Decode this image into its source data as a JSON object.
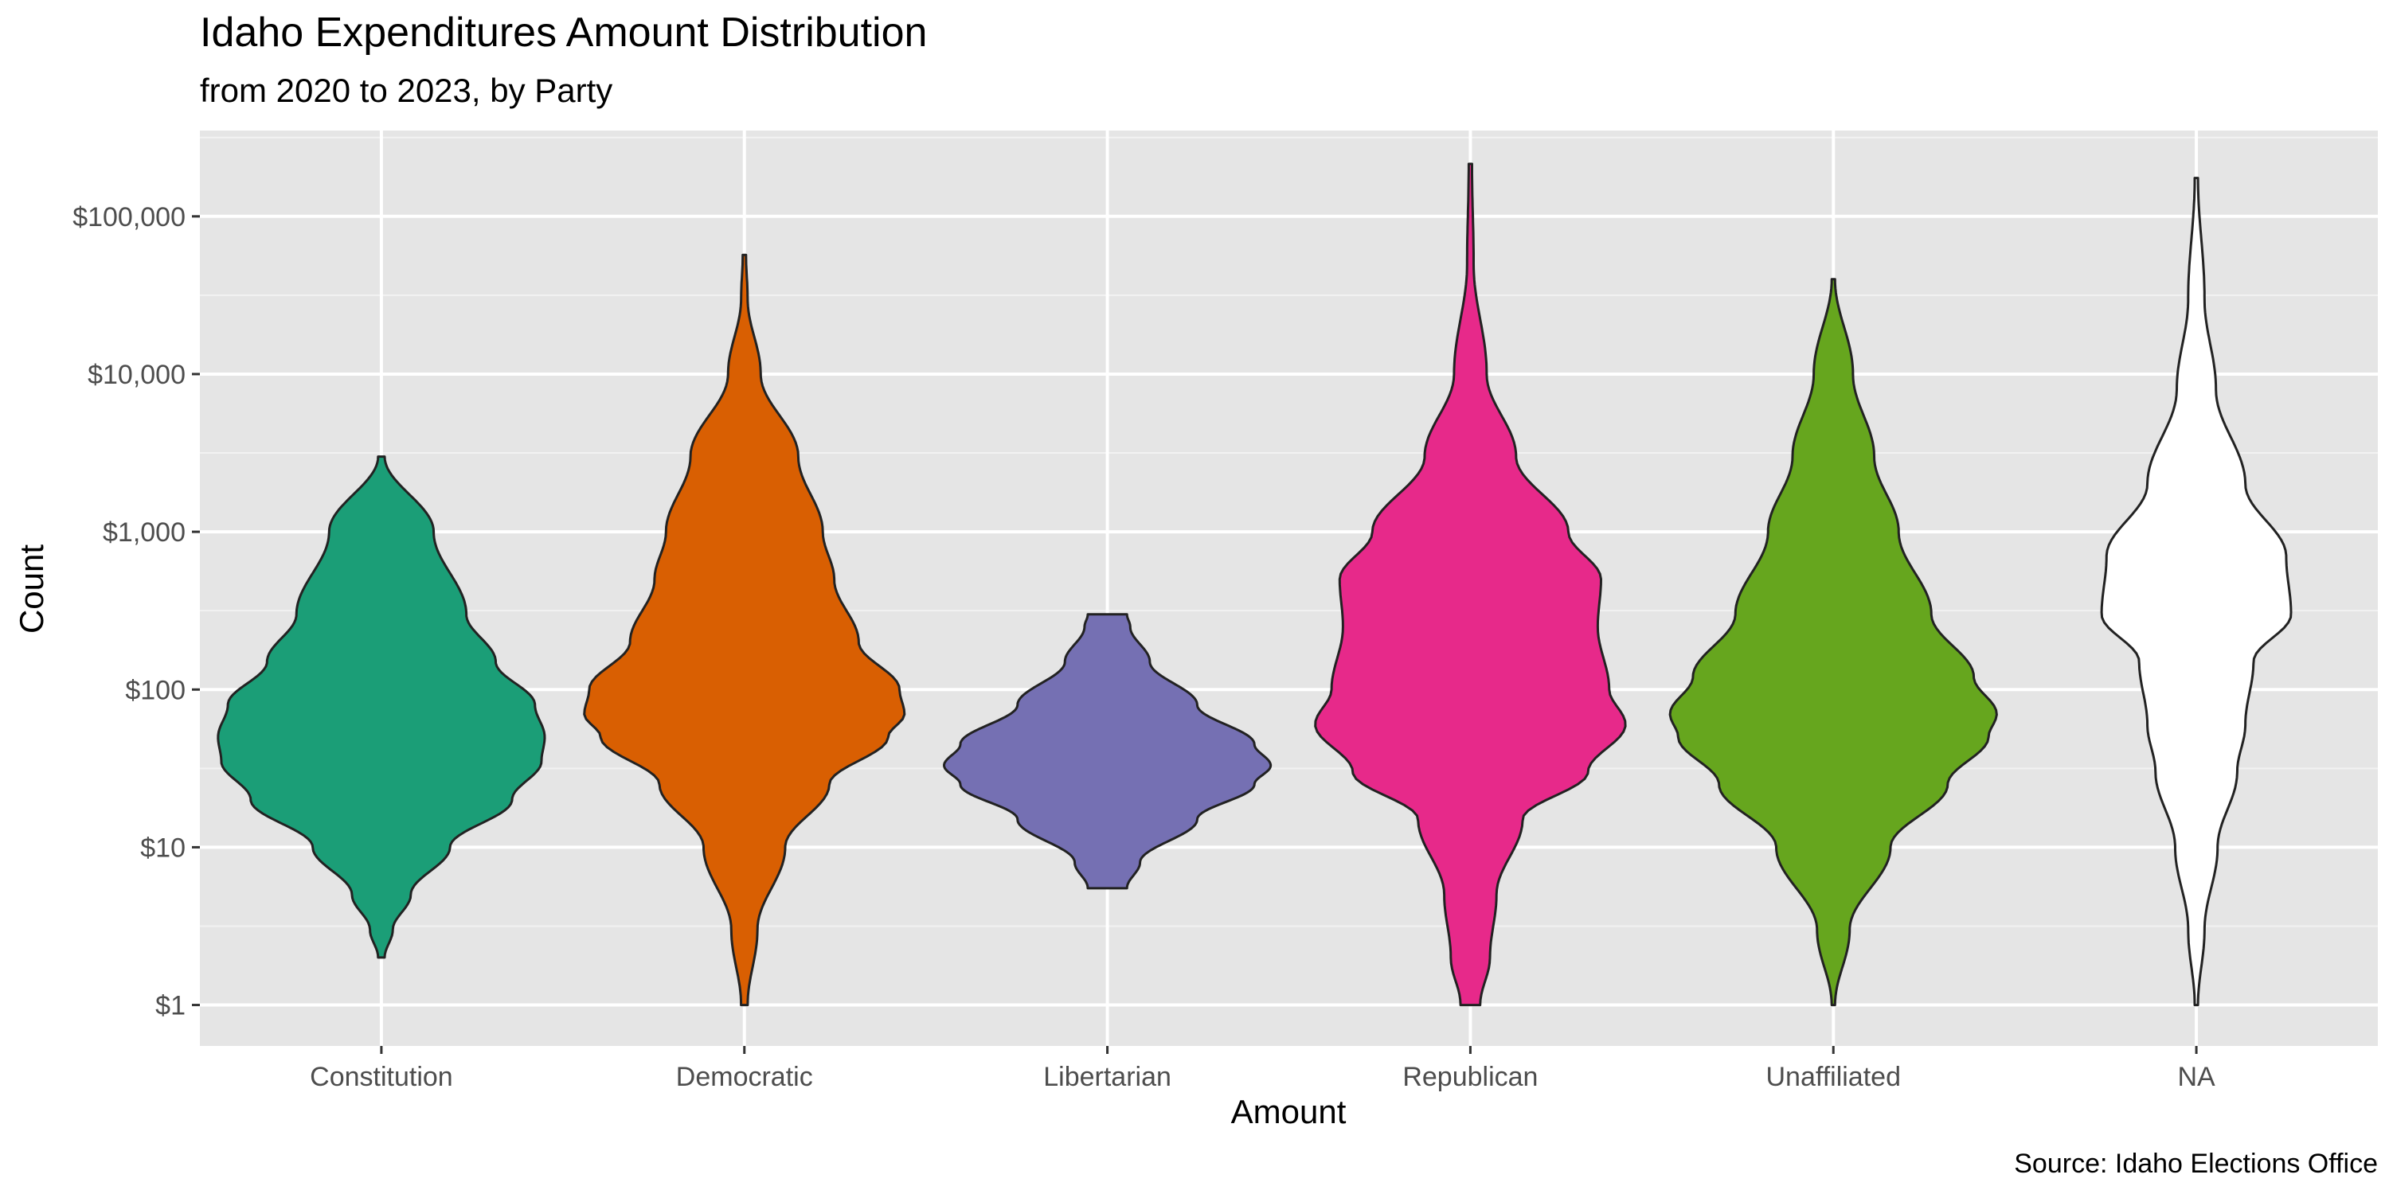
{
  "chart_data": {
    "type": "violin",
    "title": "Idaho Expenditures Amount Distribution",
    "subtitle": "from 2020 to 2023, by Party",
    "caption": "Source: Idaho Elections Office",
    "xlabel": "Amount",
    "ylabel": "Count",
    "y_scale": "log10",
    "ylim": [
      0.55,
      350000
    ],
    "y_ticks": [
      1,
      10,
      100,
      1000,
      10000,
      100000
    ],
    "y_tick_labels": [
      "$1",
      "$10",
      "$100",
      "$1,000",
      "$10,000",
      "$100,000"
    ],
    "grid": true,
    "legend": "none",
    "categories": [
      "Constitution",
      "Democratic",
      "Libertarian",
      "Republican",
      "Unaffiliated",
      "NA"
    ],
    "series": [
      {
        "category": "Constitution",
        "color": "#1B9E77",
        "min": 2,
        "max": 3000,
        "profile": [
          [
            2,
            0.02
          ],
          [
            3,
            0.07
          ],
          [
            5,
            0.18
          ],
          [
            10,
            0.42
          ],
          [
            20,
            0.8
          ],
          [
            35,
            0.98
          ],
          [
            50,
            1.0
          ],
          [
            80,
            0.94
          ],
          [
            150,
            0.7
          ],
          [
            300,
            0.52
          ],
          [
            1000,
            0.32
          ],
          [
            3000,
            0.02
          ]
        ]
      },
      {
        "category": "Democratic",
        "color": "#D95F02",
        "min": 1,
        "max": 57000,
        "profile": [
          [
            1,
            0.02
          ],
          [
            3,
            0.08
          ],
          [
            10,
            0.25
          ],
          [
            25,
            0.52
          ],
          [
            50,
            0.88
          ],
          [
            70,
            0.98
          ],
          [
            100,
            0.95
          ],
          [
            200,
            0.7
          ],
          [
            500,
            0.55
          ],
          [
            1000,
            0.48
          ],
          [
            3000,
            0.33
          ],
          [
            10000,
            0.1
          ],
          [
            30000,
            0.02
          ],
          [
            57000,
            0.01
          ]
        ]
      },
      {
        "category": "Libertarian",
        "color": "#7570B3",
        "min": 5.5,
        "max": 300,
        "profile": [
          [
            5.5,
            0.12
          ],
          [
            8,
            0.2
          ],
          [
            15,
            0.55
          ],
          [
            25,
            0.9
          ],
          [
            33,
            1.0
          ],
          [
            45,
            0.9
          ],
          [
            80,
            0.55
          ],
          [
            150,
            0.26
          ],
          [
            250,
            0.14
          ],
          [
            300,
            0.12
          ]
        ]
      },
      {
        "category": "Republican",
        "color": "#E7298A",
        "min": 1,
        "max": 215000,
        "profile": [
          [
            1,
            0.06
          ],
          [
            2,
            0.12
          ],
          [
            5,
            0.16
          ],
          [
            15,
            0.32
          ],
          [
            30,
            0.72
          ],
          [
            60,
            0.95
          ],
          [
            100,
            0.85
          ],
          [
            250,
            0.78
          ],
          [
            500,
            0.8
          ],
          [
            1000,
            0.6
          ],
          [
            3000,
            0.28
          ],
          [
            10000,
            0.1
          ],
          [
            50000,
            0.02
          ],
          [
            215000,
            0.01
          ]
        ]
      },
      {
        "category": "Unaffiliated",
        "color": "#66A61E",
        "min": 1,
        "max": 40000,
        "profile": [
          [
            1,
            0.01
          ],
          [
            3,
            0.1
          ],
          [
            10,
            0.35
          ],
          [
            25,
            0.7
          ],
          [
            50,
            0.95
          ],
          [
            70,
            1.0
          ],
          [
            120,
            0.86
          ],
          [
            300,
            0.6
          ],
          [
            1000,
            0.4
          ],
          [
            3000,
            0.25
          ],
          [
            10000,
            0.12
          ],
          [
            40000,
            0.01
          ]
        ]
      },
      {
        "category": "NA",
        "color": "#FFFFFF",
        "min": 1,
        "max": 175000,
        "profile": [
          [
            1,
            0.01
          ],
          [
            3,
            0.05
          ],
          [
            10,
            0.13
          ],
          [
            30,
            0.25
          ],
          [
            60,
            0.3
          ],
          [
            150,
            0.35
          ],
          [
            300,
            0.58
          ],
          [
            700,
            0.55
          ],
          [
            2000,
            0.3
          ],
          [
            8000,
            0.12
          ],
          [
            30000,
            0.05
          ],
          [
            175000,
            0.01
          ]
        ]
      }
    ]
  }
}
